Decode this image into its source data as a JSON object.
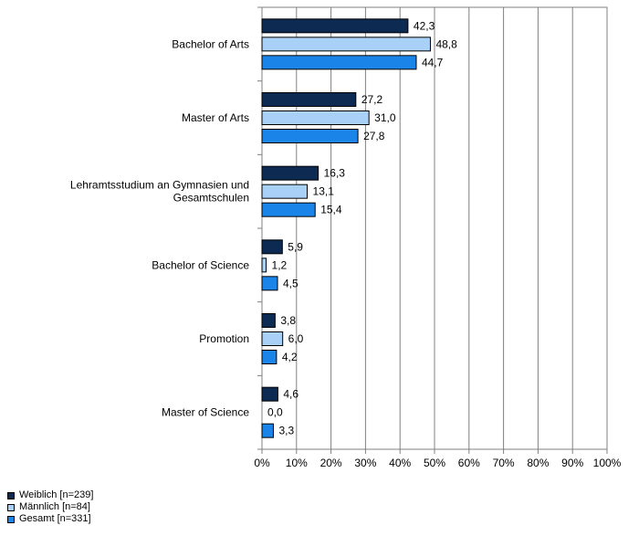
{
  "chart_data": {
    "type": "bar",
    "orientation": "horizontal",
    "categories": [
      [
        "Bachelor of Arts"
      ],
      [
        "Master of Arts"
      ],
      [
        "Lehramtsstudium an Gymnasien und",
        "Gesamtschulen"
      ],
      [
        "Bachelor of Science"
      ],
      [
        "Promotion"
      ],
      [
        "Master of Science"
      ]
    ],
    "series": [
      {
        "name": "Weiblich [n=239]",
        "color": "#0d2b52",
        "values": [
          42.3,
          27.2,
          16.3,
          5.9,
          3.8,
          4.6
        ],
        "labels": [
          "42,3",
          "27,2",
          "16,3",
          "5,9",
          "3,8",
          "4,6"
        ]
      },
      {
        "name": "Männlich [n=84]",
        "color": "#a9d1f7",
        "values": [
          48.8,
          31.0,
          13.1,
          1.2,
          6.0,
          0.0
        ],
        "labels": [
          "48,8",
          "31,0",
          "13,1",
          "1,2",
          "6,0",
          "0,0"
        ]
      },
      {
        "name": "Gesamt [n=331]",
        "color": "#1a84e8",
        "values": [
          44.7,
          27.8,
          15.4,
          4.5,
          4.2,
          3.3
        ],
        "labels": [
          "44,7",
          "27,8",
          "15,4",
          "4,5",
          "4,2",
          "3,3"
        ]
      }
    ],
    "xlim": [
      0,
      100
    ],
    "xticks": [
      "0%",
      "10%",
      "20%",
      "30%",
      "40%",
      "50%",
      "60%",
      "70%",
      "80%",
      "90%",
      "100%"
    ],
    "grid": true,
    "legend_position": "bottom-left"
  }
}
